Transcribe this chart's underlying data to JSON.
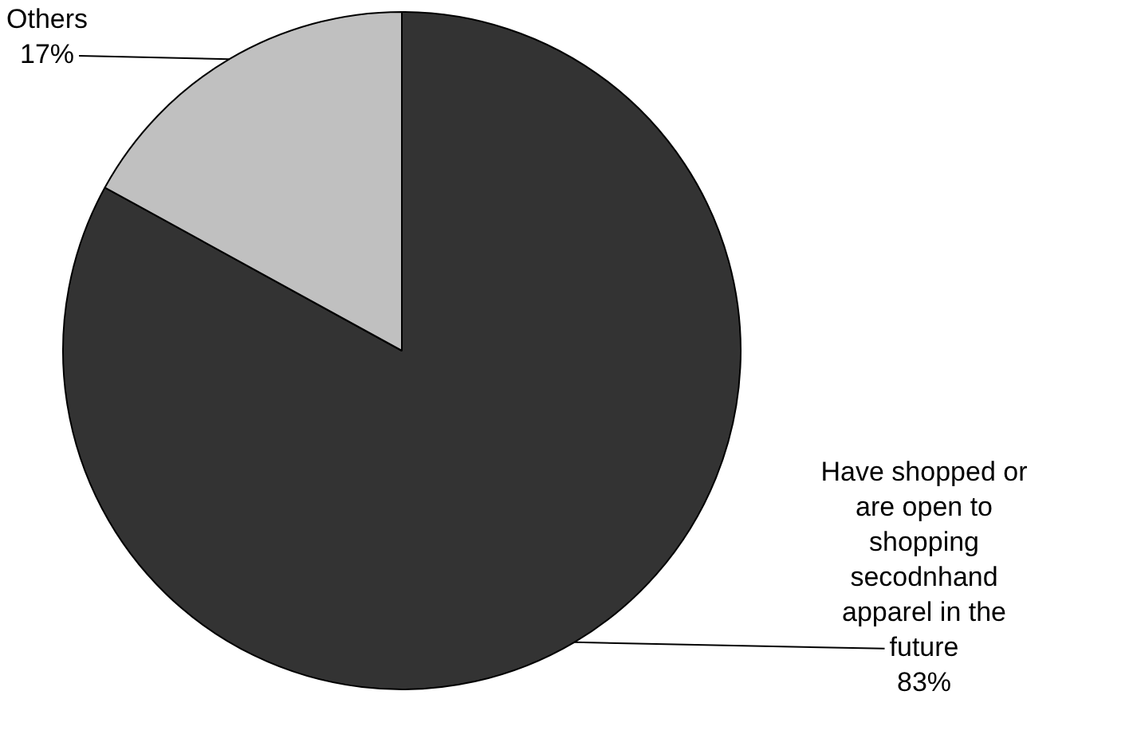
{
  "chart_data": {
    "type": "pie",
    "categories": [
      "Have shopped or are open to shopping secodnhand apparel in the future",
      "Others"
    ],
    "values": [
      83,
      17
    ],
    "value_labels": [
      "83%",
      "17%"
    ],
    "colors": [
      "#333333",
      "#c0c0c0"
    ],
    "legend": false
  }
}
